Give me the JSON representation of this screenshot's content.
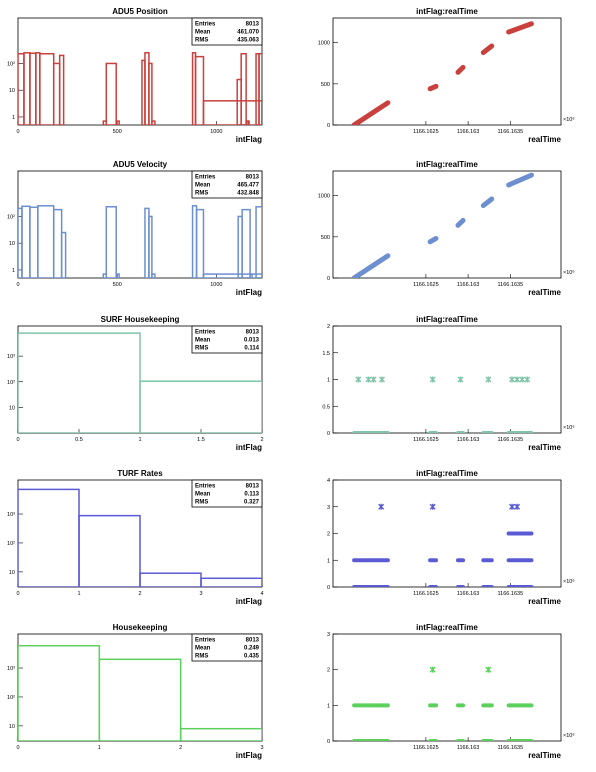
{
  "panels": [
    {
      "kind": "hist",
      "title": "ADU5 Position",
      "xlabel": "intFlag",
      "color": "#c8413d",
      "log": true,
      "xlim": [
        0,
        1230
      ],
      "ylim": [
        0.5,
        5000
      ],
      "xticks": [
        0,
        500,
        1000
      ],
      "yticks": [
        1,
        10,
        100
      ],
      "ytick_labels": [
        "1",
        "10",
        "10²"
      ],
      "stats": {
        "entries_label": "Entries",
        "entries": "8013",
        "mean_label": "Mean",
        "mean": "461.070",
        "rms_label": "RMS",
        "rms": "435.063"
      },
      "chart_data": {
        "type": "histogram",
        "bins": [
          [
            0,
            30,
            230
          ],
          [
            30,
            60,
            250
          ],
          [
            60,
            90,
            240
          ],
          [
            90,
            110,
            250
          ],
          [
            110,
            180,
            230
          ],
          [
            180,
            210,
            100
          ],
          [
            210,
            230,
            200
          ],
          [
            230,
            1240,
            0.4
          ],
          [
            430,
            445,
            0.7
          ],
          [
            445,
            495,
            100
          ],
          [
            495,
            510,
            0.7
          ],
          [
            625,
            640,
            130
          ],
          [
            640,
            660,
            250
          ],
          [
            660,
            675,
            100
          ],
          [
            675,
            690,
            0.7
          ],
          [
            880,
            895,
            250
          ],
          [
            895,
            935,
            180
          ],
          [
            935,
            1230,
            4
          ],
          [
            1105,
            1125,
            25
          ],
          [
            1125,
            1150,
            230
          ],
          [
            1150,
            1160,
            0.7
          ],
          [
            1160,
            1165,
            0.7
          ],
          [
            1200,
            1215,
            230
          ],
          [
            1215,
            1230,
            230
          ]
        ]
      }
    },
    {
      "kind": "scatter",
      "title": "intFlag:realTime",
      "xlabel": "realTime",
      "color": "#c8413d",
      "xlim": [
        1166.1614,
        1166.1641
      ],
      "ylim": [
        0,
        1300
      ],
      "xticks": [
        1166.1625,
        1166.163,
        1166.1635
      ],
      "xtick_labels": [
        "1166.1625",
        "1166.163",
        "1166.1635"
      ],
      "yticks": [
        0,
        500,
        1000
      ],
      "exponent_label": "×10⁶",
      "chart_data": {
        "type": "scatter",
        "segments": [
          {
            "x0": 1166.16165,
            "x1": 1166.16205,
            "y0": 0,
            "y1": 270
          },
          {
            "x0": 1166.16255,
            "x1": 1166.16262,
            "y0": 440,
            "y1": 470
          },
          {
            "x0": 1166.16288,
            "x1": 1166.16294,
            "y0": 640,
            "y1": 700
          },
          {
            "x0": 1166.16318,
            "x1": 1166.16328,
            "y0": 880,
            "y1": 960
          },
          {
            "x0": 1166.16348,
            "x1": 1166.16375,
            "y0": 1130,
            "y1": 1230
          }
        ]
      }
    },
    {
      "kind": "hist",
      "title": "ADU5 Velocity",
      "xlabel": "intFlag",
      "color": "#6d8fcf",
      "log": true,
      "xlim": [
        0,
        1230
      ],
      "ylim": [
        0.5,
        5000
      ],
      "xticks": [
        0,
        500,
        1000
      ],
      "yticks": [
        1,
        10,
        100
      ],
      "ytick_labels": [
        "1",
        "10",
        "10²"
      ],
      "stats": {
        "entries_label": "Entries",
        "entries": "8013",
        "mean_label": "Mean",
        "mean": "465.477",
        "rms_label": "RMS",
        "rms": "432.848"
      },
      "chart_data": {
        "type": "histogram",
        "bins": [
          [
            0,
            20,
            200
          ],
          [
            20,
            60,
            240
          ],
          [
            60,
            100,
            220
          ],
          [
            100,
            180,
            250
          ],
          [
            180,
            220,
            180
          ],
          [
            220,
            240,
            25
          ],
          [
            240,
            1240,
            0.4
          ],
          [
            430,
            445,
            0.7
          ],
          [
            445,
            495,
            230
          ],
          [
            495,
            510,
            0.7
          ],
          [
            640,
            660,
            200
          ],
          [
            660,
            675,
            100
          ],
          [
            675,
            690,
            0.7
          ],
          [
            880,
            900,
            250
          ],
          [
            900,
            935,
            180
          ],
          [
            935,
            1230,
            0.7
          ],
          [
            1110,
            1130,
            100
          ],
          [
            1130,
            1170,
            180
          ],
          [
            1170,
            1180,
            0.7
          ],
          [
            1200,
            1230,
            230
          ]
        ]
      }
    },
    {
      "kind": "scatter",
      "title": "intFlag:realTime",
      "xlabel": "realTime",
      "color": "#6d8fcf",
      "xlim": [
        1166.1614,
        1166.1641
      ],
      "ylim": [
        0,
        1300
      ],
      "xticks": [
        1166.1625,
        1166.163,
        1166.1635
      ],
      "xtick_labels": [
        "1166.1625",
        "1166.163",
        "1166.1635"
      ],
      "yticks": [
        0,
        500,
        1000
      ],
      "exponent_label": "×10⁶",
      "chart_data": {
        "type": "scatter",
        "segments": [
          {
            "x0": 1166.16165,
            "x1": 1166.16205,
            "y0": 0,
            "y1": 270
          },
          {
            "x0": 1166.16255,
            "x1": 1166.16262,
            "y0": 440,
            "y1": 480
          },
          {
            "x0": 1166.16288,
            "x1": 1166.16294,
            "y0": 640,
            "y1": 700
          },
          {
            "x0": 1166.16318,
            "x1": 1166.16328,
            "y0": 880,
            "y1": 960
          },
          {
            "x0": 1166.16348,
            "x1": 1166.16375,
            "y0": 1130,
            "y1": 1250
          }
        ]
      }
    },
    {
      "kind": "hist",
      "title": "SURF Housekeeping",
      "xlabel": "intFlag",
      "color": "#80c4a8",
      "log": true,
      "xlim": [
        0,
        2
      ],
      "ylim": [
        1,
        15000
      ],
      "xticks": [
        0,
        0.5,
        1,
        1.5,
        2
      ],
      "xtick_labels": [
        "0",
        "0.5",
        "1",
        "1.5",
        "2"
      ],
      "yticks": [
        10,
        100,
        1000
      ],
      "ytick_labels": [
        "10",
        "10²",
        "10³"
      ],
      "stats": {
        "entries_label": "Entries",
        "entries": "8013",
        "mean_label": "Mean",
        "mean": "0.013",
        "rms_label": "RMS",
        "rms": "0.114"
      },
      "chart_data": {
        "type": "histogram",
        "bins": [
          [
            0,
            1,
            7908
          ],
          [
            1,
            2,
            105
          ]
        ]
      }
    },
    {
      "kind": "scatter",
      "title": "intFlag:realTime",
      "xlabel": "realTime",
      "color": "#80c4a8",
      "xlim": [
        1166.1614,
        1166.1641
      ],
      "ylim": [
        0,
        2
      ],
      "xticks": [
        1166.1625,
        1166.163,
        1166.1635
      ],
      "xtick_labels": [
        "1166.1625",
        "1166.163",
        "1166.1635"
      ],
      "yticks": [
        0,
        0.5,
        1,
        1.5,
        2
      ],
      "ytick_labels": [
        "0",
        "0.5",
        "1",
        "1.5",
        "2"
      ],
      "exponent_label": "×10⁶",
      "chart_data": {
        "type": "scatter",
        "bands": [
          {
            "x0": 1166.16165,
            "x1": 1166.16205,
            "y": 0
          },
          {
            "x0": 1166.16255,
            "x1": 1166.16262,
            "y": 0
          },
          {
            "x0": 1166.16288,
            "x1": 1166.16294,
            "y": 0
          },
          {
            "x0": 1166.16318,
            "x1": 1166.16328,
            "y": 0
          },
          {
            "x0": 1166.16348,
            "x1": 1166.16375,
            "y": 0
          }
        ],
        "points": [
          [
            1166.1617,
            1
          ],
          [
            1166.16182,
            1
          ],
          [
            1166.16188,
            1
          ],
          [
            1166.16198,
            1
          ],
          [
            1166.16258,
            1
          ],
          [
            1166.16291,
            1
          ],
          [
            1166.16324,
            1
          ],
          [
            1166.16352,
            1
          ],
          [
            1166.16358,
            1
          ],
          [
            1166.16364,
            1
          ],
          [
            1166.1637,
            1
          ]
        ]
      }
    },
    {
      "kind": "hist",
      "title": "TURF Rates",
      "xlabel": "intFlag",
      "color": "#5a5ad4",
      "log": true,
      "xlim": [
        0,
        4
      ],
      "ylim": [
        3,
        15000
      ],
      "xticks": [
        0,
        1,
        2,
        3,
        4
      ],
      "yticks": [
        10,
        100,
        1000
      ],
      "ytick_labels": [
        "10",
        "10²",
        "10³"
      ],
      "stats": {
        "entries_label": "Entries",
        "entries": "8013",
        "mean_label": "Mean",
        "mean": "0.113",
        "rms_label": "RMS",
        "rms": "0.327"
      },
      "chart_data": {
        "type": "histogram",
        "bins": [
          [
            0,
            1,
            7100
          ],
          [
            1,
            2,
            880
          ],
          [
            2,
            3,
            9
          ],
          [
            3,
            4,
            6
          ]
        ]
      }
    },
    {
      "kind": "scatter",
      "title": "intFlag:realTime",
      "xlabel": "realTime",
      "color": "#5a5ad4",
      "xlim": [
        1166.1614,
        1166.1641
      ],
      "ylim": [
        0,
        4
      ],
      "xticks": [
        1166.1625,
        1166.163,
        1166.1635
      ],
      "xtick_labels": [
        "1166.1625",
        "1166.163",
        "1166.1635"
      ],
      "yticks": [
        0,
        1,
        2,
        3,
        4
      ],
      "exponent_label": "×10⁶",
      "chart_data": {
        "type": "scatter",
        "bands": [
          {
            "x0": 1166.16165,
            "x1": 1166.16205,
            "y": 0
          },
          {
            "x0": 1166.16255,
            "x1": 1166.16262,
            "y": 0
          },
          {
            "x0": 1166.16288,
            "x1": 1166.16294,
            "y": 0
          },
          {
            "x0": 1166.16318,
            "x1": 1166.16328,
            "y": 0
          },
          {
            "x0": 1166.16348,
            "x1": 1166.16375,
            "y": 0
          },
          {
            "x0": 1166.16165,
            "x1": 1166.16205,
            "y": 1
          },
          {
            "x0": 1166.16255,
            "x1": 1166.16262,
            "y": 1
          },
          {
            "x0": 1166.16288,
            "x1": 1166.16294,
            "y": 1
          },
          {
            "x0": 1166.16318,
            "x1": 1166.16328,
            "y": 1
          },
          {
            "x0": 1166.16348,
            "x1": 1166.16375,
            "y": 1
          },
          {
            "x0": 1166.16348,
            "x1": 1166.16375,
            "y": 2
          }
        ],
        "points": [
          [
            1166.16197,
            3
          ],
          [
            1166.16258,
            3
          ],
          [
            1166.16352,
            3
          ],
          [
            1166.16358,
            3
          ]
        ]
      }
    },
    {
      "kind": "hist",
      "title": "Housekeeping",
      "xlabel": "intFlag",
      "color": "#5ccf5c",
      "log": true,
      "xlim": [
        0,
        3
      ],
      "ylim": [
        3,
        15000
      ],
      "xticks": [
        0,
        1,
        2,
        3
      ],
      "yticks": [
        10,
        100,
        1000
      ],
      "ytick_labels": [
        "10",
        "10²",
        "10³"
      ],
      "stats": {
        "entries_label": "Entries",
        "entries": "8013",
        "mean_label": "Mean",
        "mean": "0.249",
        "rms_label": "RMS",
        "rms": "0.435"
      },
      "chart_data": {
        "type": "histogram",
        "bins": [
          [
            0,
            1,
            5900
          ],
          [
            1,
            2,
            2000
          ],
          [
            2,
            3,
            8
          ]
        ]
      }
    },
    {
      "kind": "scatter",
      "title": "intFlag:realTime",
      "xlabel": "realTime",
      "color": "#5ccf5c",
      "xlim": [
        1166.1614,
        1166.1641
      ],
      "ylim": [
        0,
        3
      ],
      "xticks": [
        1166.1625,
        1166.163,
        1166.1635
      ],
      "xtick_labels": [
        "1166.1625",
        "1166.163",
        "1166.1635"
      ],
      "yticks": [
        0,
        1,
        2,
        3
      ],
      "exponent_label": "×10⁶",
      "chart_data": {
        "type": "scatter",
        "bands": [
          {
            "x0": 1166.16165,
            "x1": 1166.16205,
            "y": 0
          },
          {
            "x0": 1166.16255,
            "x1": 1166.16262,
            "y": 0
          },
          {
            "x0": 1166.16288,
            "x1": 1166.16294,
            "y": 0
          },
          {
            "x0": 1166.16318,
            "x1": 1166.16328,
            "y": 0
          },
          {
            "x0": 1166.16348,
            "x1": 1166.16375,
            "y": 0
          },
          {
            "x0": 1166.16165,
            "x1": 1166.16205,
            "y": 1
          },
          {
            "x0": 1166.16255,
            "x1": 1166.16262,
            "y": 1
          },
          {
            "x0": 1166.16288,
            "x1": 1166.16294,
            "y": 1
          },
          {
            "x0": 1166.16318,
            "x1": 1166.16328,
            "y": 1
          },
          {
            "x0": 1166.16348,
            "x1": 1166.16375,
            "y": 1
          }
        ],
        "points": [
          [
            1166.16258,
            2
          ],
          [
            1166.16324,
            2
          ]
        ]
      }
    }
  ]
}
